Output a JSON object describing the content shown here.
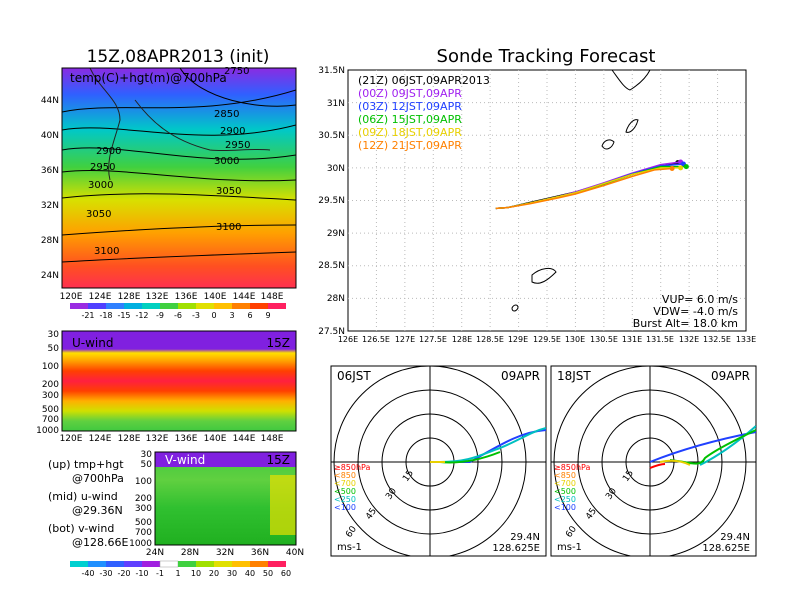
{
  "left_top": {
    "title": "15Z,08APR2013 (init)",
    "label": "temp(C)+hgt(m)@700hPa",
    "contours": [
      "2750",
      "2850",
      "2900",
      "2950",
      "2900",
      "2950",
      "3000",
      "3000",
      "3050",
      "3050",
      "3100",
      "3100"
    ],
    "lat_ticks": [
      "44N",
      "40N",
      "36N",
      "32N",
      "28N",
      "24N"
    ],
    "lon_ticks": [
      "120E",
      "124E",
      "128E",
      "132E",
      "136E",
      "140E",
      "144E",
      "148E"
    ],
    "colorbar_ticks": [
      "-21",
      "-18",
      "-15",
      "-12",
      "-9",
      "-6",
      "-3",
      "0",
      "3",
      "6",
      "9"
    ]
  },
  "left_mid": {
    "label": "U-wind",
    "time": "15Z",
    "p_ticks": [
      "30",
      "50",
      "100",
      "200",
      "300",
      "500",
      "700",
      "1000"
    ],
    "lon_ticks": [
      "120E",
      "124E",
      "128E",
      "132E",
      "136E",
      "140E",
      "144E",
      "148E"
    ]
  },
  "left_bot": {
    "label": "V-wind",
    "time": "15Z",
    "p_ticks": [
      "30",
      "50",
      "100",
      "200",
      "300",
      "500",
      "700",
      "1000"
    ],
    "lat_ticks": [
      "24N",
      "28N",
      "32N",
      "36N",
      "40N"
    ],
    "colorbar_ticks": [
      "-40",
      "-30",
      "-20",
      "-10",
      "-1",
      "1",
      "10",
      "20",
      "30",
      "40",
      "50",
      "60"
    ]
  },
  "legend_left": {
    "up": [
      "(up) tmp+hgt",
      "@700hPa"
    ],
    "mid": [
      "(mid) u-wind",
      "@29.36N"
    ],
    "bot": [
      "(bot) v-wind",
      "@128.66E"
    ]
  },
  "tracking": {
    "title": "Sonde Tracking Forecast",
    "lat_ticks": [
      "31.5N",
      "31N",
      "30.5N",
      "30N",
      "29.5N",
      "29N",
      "28.5N",
      "28N",
      "27.5N"
    ],
    "lon_ticks": [
      "126E",
      "126.5E",
      "127E",
      "127.5E",
      "128E",
      "128.5E",
      "129E",
      "129.5E",
      "130E",
      "130.5E",
      "131E",
      "131.5E",
      "132E",
      "132.5E",
      "133E"
    ],
    "legend": [
      {
        "text": "(21Z)  06JST,09APR2013",
        "color": "#000000"
      },
      {
        "text": "(00Z)  09JST,09APR",
        "color": "#a020f0"
      },
      {
        "text": "(03Z)  12JST,09APR",
        "color": "#2040ff"
      },
      {
        "text": "(06Z)  15JST,09APR",
        "color": "#00c000"
      },
      {
        "text": "(09Z)  18JST,09APR",
        "color": "#e8d000"
      },
      {
        "text": "(12Z)  21JST,09APR",
        "color": "#ff8000"
      }
    ],
    "info": [
      "VUP=  6.0  m/s",
      "VDW= -4.0  m/s",
      "Burst Alt=  18.0  km"
    ]
  },
  "polar": [
    {
      "time": "06JST",
      "date": "09APR",
      "rings": [
        "15",
        "30",
        "45",
        "60"
      ],
      "levels": [
        "≥850hPa",
        "<850",
        "<700",
        "<500",
        "<250",
        "<100"
      ],
      "unit": "ms-1",
      "lat": "29.4N",
      "lon": "128.625E"
    },
    {
      "time": "18JST",
      "date": "09APR",
      "rings": [
        "15",
        "30",
        "45",
        "60"
      ],
      "levels": [
        "≥850hPa",
        "<850",
        "<700",
        "<500",
        "<250",
        "<100"
      ],
      "unit": "ms-1",
      "lat": "29.4N",
      "lon": "128.625E"
    }
  ],
  "level_colors": [
    "#ff0000",
    "#ff8000",
    "#e8d000",
    "#00c000",
    "#00c0c0",
    "#2040ff"
  ],
  "chart_data": [
    {
      "type": "heatmap",
      "title": "15Z,08APR2013 (init)",
      "field": "temp(C)+hgt(m)@700hPa",
      "xlim": [
        120,
        149
      ],
      "ylim": [
        22,
        47
      ],
      "contour_levels": [
        2750,
        2850,
        2900,
        2950,
        3000,
        3050,
        3100
      ],
      "color_range": [
        -21,
        9
      ]
    },
    {
      "type": "heatmap",
      "field": "U-wind",
      "y_axis": "pressure",
      "xlim": [
        120,
        149
      ],
      "yticks": [
        30,
        50,
        100,
        200,
        300,
        500,
        700,
        1000
      ]
    },
    {
      "type": "heatmap",
      "field": "V-wind",
      "y_axis": "pressure",
      "xlim": [
        24,
        40
      ],
      "yticks": [
        30,
        50,
        100,
        200,
        300,
        500,
        700,
        1000
      ]
    },
    {
      "type": "line",
      "title": "Sonde Tracking Forecast",
      "xlim": [
        126,
        133
      ],
      "ylim": [
        27.5,
        31.5
      ],
      "series": [
        {
          "name": "06JST,09APR2013",
          "x": [
            128.6,
            128.8,
            129.2,
            129.7,
            130.0,
            130.5,
            131.0,
            131.5,
            131.8
          ],
          "y": [
            29.38,
            29.39,
            29.47,
            29.57,
            29.63,
            29.76,
            29.9,
            30.02,
            30.08
          ]
        },
        {
          "name": "09JST,09APR",
          "x": [
            128.6,
            128.8,
            129.2,
            129.7,
            130.0,
            130.5,
            131.0,
            131.5,
            131.85
          ],
          "y": [
            29.38,
            29.39,
            29.46,
            29.56,
            29.63,
            29.77,
            29.92,
            30.05,
            30.09
          ]
        },
        {
          "name": "12JST,09APR",
          "x": [
            128.6,
            128.8,
            129.2,
            129.7,
            130.0,
            130.5,
            131.0,
            131.5,
            131.9
          ],
          "y": [
            29.38,
            29.39,
            29.46,
            29.56,
            29.62,
            29.76,
            29.91,
            30.03,
            30.06
          ]
        },
        {
          "name": "15JST,09APR",
          "x": [
            128.6,
            128.8,
            129.2,
            129.7,
            130.0,
            130.5,
            131.0,
            131.5,
            131.95
          ],
          "y": [
            29.38,
            29.39,
            29.46,
            29.55,
            29.61,
            29.75,
            29.9,
            30.02,
            30.02
          ]
        },
        {
          "name": "18JST,09APR",
          "x": [
            128.6,
            128.8,
            129.2,
            129.7,
            130.0,
            130.5,
            131.0,
            131.5,
            131.85
          ],
          "y": [
            29.38,
            29.39,
            29.46,
            29.56,
            29.62,
            29.76,
            29.9,
            30.0,
            30.0
          ]
        },
        {
          "name": "21JST,09APR",
          "x": [
            128.6,
            128.8,
            129.2,
            129.7,
            130.0,
            130.5,
            131.0,
            131.4,
            131.7
          ],
          "y": [
            29.38,
            29.39,
            29.45,
            29.54,
            29.6,
            29.73,
            29.87,
            29.97,
            29.99
          ]
        }
      ]
    }
  ]
}
